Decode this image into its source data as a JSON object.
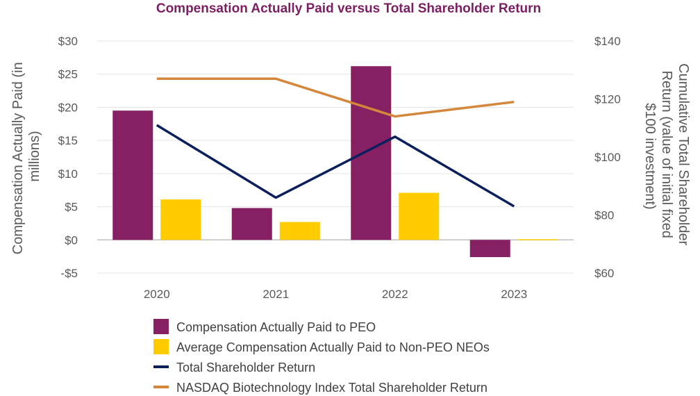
{
  "chart_data": {
    "type": "bar",
    "title": "Compensation Actually Paid versus Total Shareholder Return",
    "categories": [
      "2020",
      "2021",
      "2022",
      "2023"
    ],
    "y_left": {
      "label_lines": [
        "Compensation Actually Paid (in",
        "millions)"
      ],
      "range": [
        -5,
        30
      ],
      "ticks": [
        30,
        25,
        20,
        15,
        10,
        5,
        0,
        -5
      ],
      "tick_labels": [
        "$30",
        "$25",
        "$20",
        "$15",
        "$10",
        "$5",
        "$0",
        "-$5"
      ]
    },
    "y_right": {
      "label_lines": [
        "Cumulative Total Shareholder",
        "Return (value of initial fixed",
        "$100 investment)"
      ],
      "range": [
        60,
        140
      ],
      "ticks": [
        140,
        120,
        100,
        80,
        60
      ],
      "tick_labels": [
        "$140",
        "$120",
        "$100",
        "$80",
        "$60"
      ]
    },
    "series": [
      {
        "name": "Compensation Actually Paid to PEO",
        "kind": "bar",
        "axis": "left",
        "color": "#862062",
        "values": [
          19.5,
          4.8,
          26.2,
          -2.6
        ]
      },
      {
        "name": "Average Compensation Actually Paid to Non-PEO NEOs",
        "kind": "bar",
        "axis": "left",
        "color": "#FFCC00",
        "values": [
          6.1,
          2.7,
          7.1,
          0.1
        ]
      },
      {
        "name": "Total Shareholder Return",
        "kind": "line",
        "axis": "right",
        "color": "#0A1F5C",
        "values": [
          111,
          86,
          107,
          83
        ]
      },
      {
        "name": "NASDAQ Biotechnology Index Total Shareholder Return",
        "kind": "line",
        "axis": "right",
        "color": "#D4873A",
        "values": [
          127,
          127,
          114,
          119
        ]
      }
    ],
    "grid": true,
    "legend_position": "bottom",
    "title_color": "#7B1F62"
  }
}
